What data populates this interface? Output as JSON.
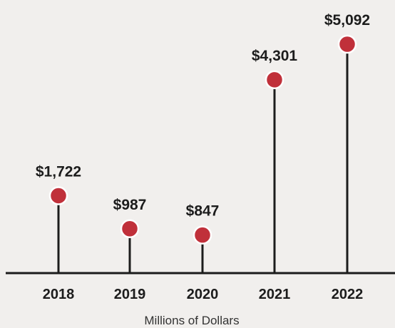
{
  "chart_data": {
    "type": "lollipop",
    "categories": [
      "2018",
      "2019",
      "2020",
      "2021",
      "2022"
    ],
    "values": [
      1722,
      987,
      847,
      4301,
      5092
    ],
    "value_labels": [
      "$1,722",
      "$987",
      "$847",
      "$4,301",
      "$5,092"
    ],
    "xlabel": "Millions of Dollars",
    "ylabel": "",
    "title": "",
    "grid": false,
    "legend": "none",
    "colors": {
      "marker": "#c0303a",
      "stem": "#1c1c1c",
      "axis": "#1c1c1c",
      "background": "#f1efed"
    }
  }
}
